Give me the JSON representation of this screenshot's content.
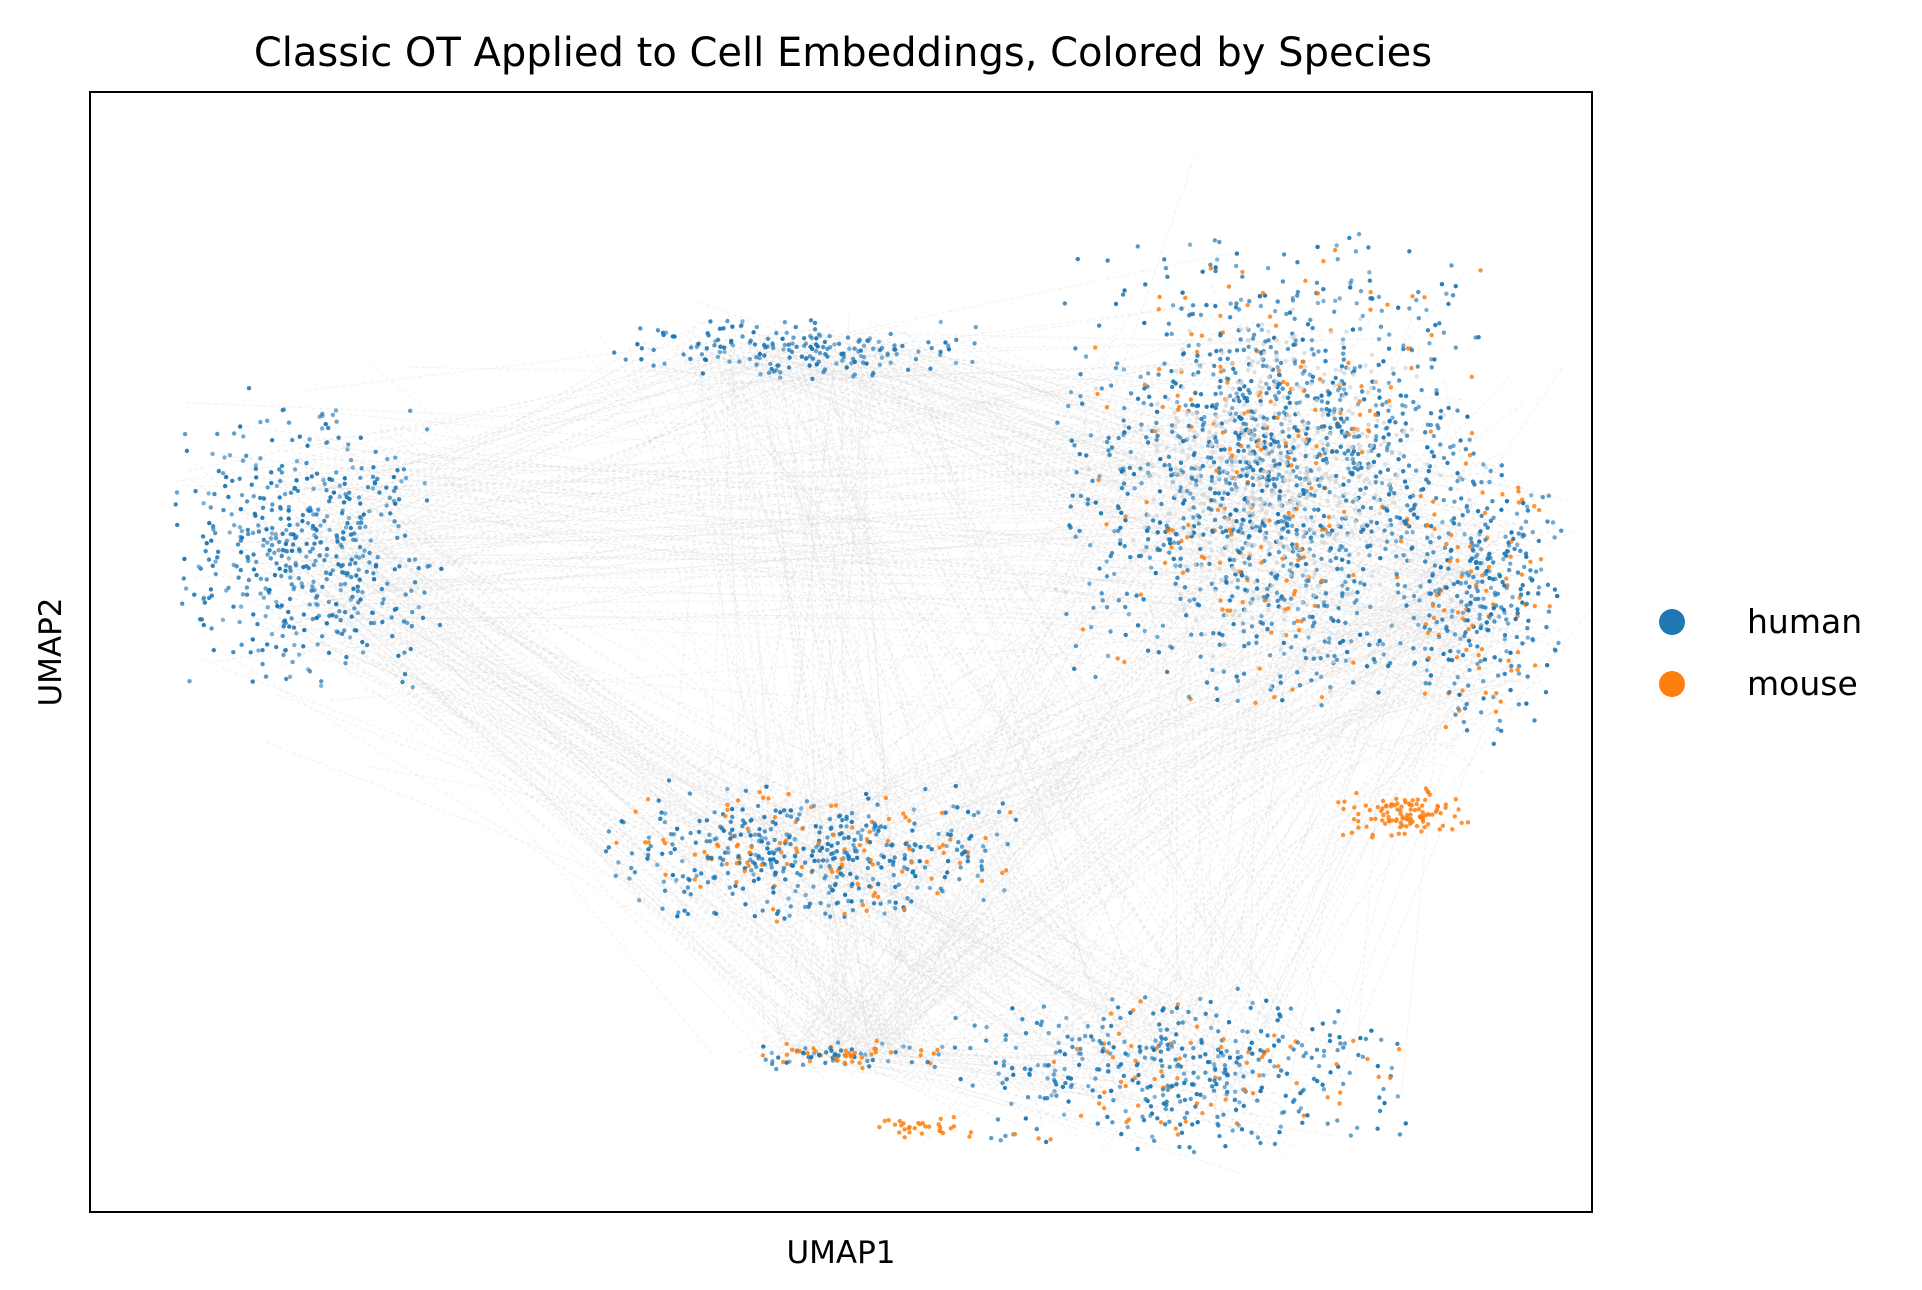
{
  "chart_data": {
    "type": "scatter",
    "title": "Classic OT Applied to Cell Embeddings, Colored by Species",
    "xlabel": "UMAP1",
    "ylabel": "UMAP2",
    "xticks": [],
    "yticks": [],
    "grid": false,
    "legend_position": "right",
    "xlim": [
      0,
      100
    ],
    "ylim": [
      0,
      100
    ],
    "link_color": "#d3d3d3",
    "series": [
      {
        "name": "human",
        "color": "#1f77b4",
        "clusters": [
          {
            "cx": 14.5,
            "cy": 59.5,
            "rx": 8,
            "ry": 11.5,
            "n": 520,
            "mouse_share": 0.0
          },
          {
            "cx": 47.0,
            "cy": 77.0,
            "rx": 11,
            "ry": 2.5,
            "n": 190,
            "mouse_share": 0.0
          },
          {
            "cx": 79.0,
            "cy": 66.0,
            "rx": 13,
            "ry": 19,
            "n": 1500,
            "mouse_share": 0.14
          },
          {
            "cx": 93.0,
            "cy": 55.0,
            "rx": 4.5,
            "ry": 11,
            "n": 350,
            "mouse_share": 0.18
          },
          {
            "cx": 48.0,
            "cy": 32.0,
            "rx": 12.5,
            "ry": 5.5,
            "n": 520,
            "mouse_share": 0.2
          },
          {
            "cx": 72.5,
            "cy": 12.5,
            "rx": 14,
            "ry": 6.5,
            "n": 470,
            "mouse_share": 0.15
          },
          {
            "cx": 51.0,
            "cy": 14.0,
            "rx": 6,
            "ry": 1.2,
            "n": 90,
            "mouse_share": 0.4
          }
        ]
      },
      {
        "name": "mouse",
        "color": "#ff7f0e",
        "clusters": [
          {
            "cx": 87.5,
            "cy": 35.5,
            "rx": 4.0,
            "ry": 2.0,
            "n": 110,
            "mouse_share": 1.0
          },
          {
            "cx": 55.5,
            "cy": 7.5,
            "rx": 3,
            "ry": 1,
            "n": 30,
            "mouse_share": 1.0
          }
        ]
      }
    ]
  }
}
